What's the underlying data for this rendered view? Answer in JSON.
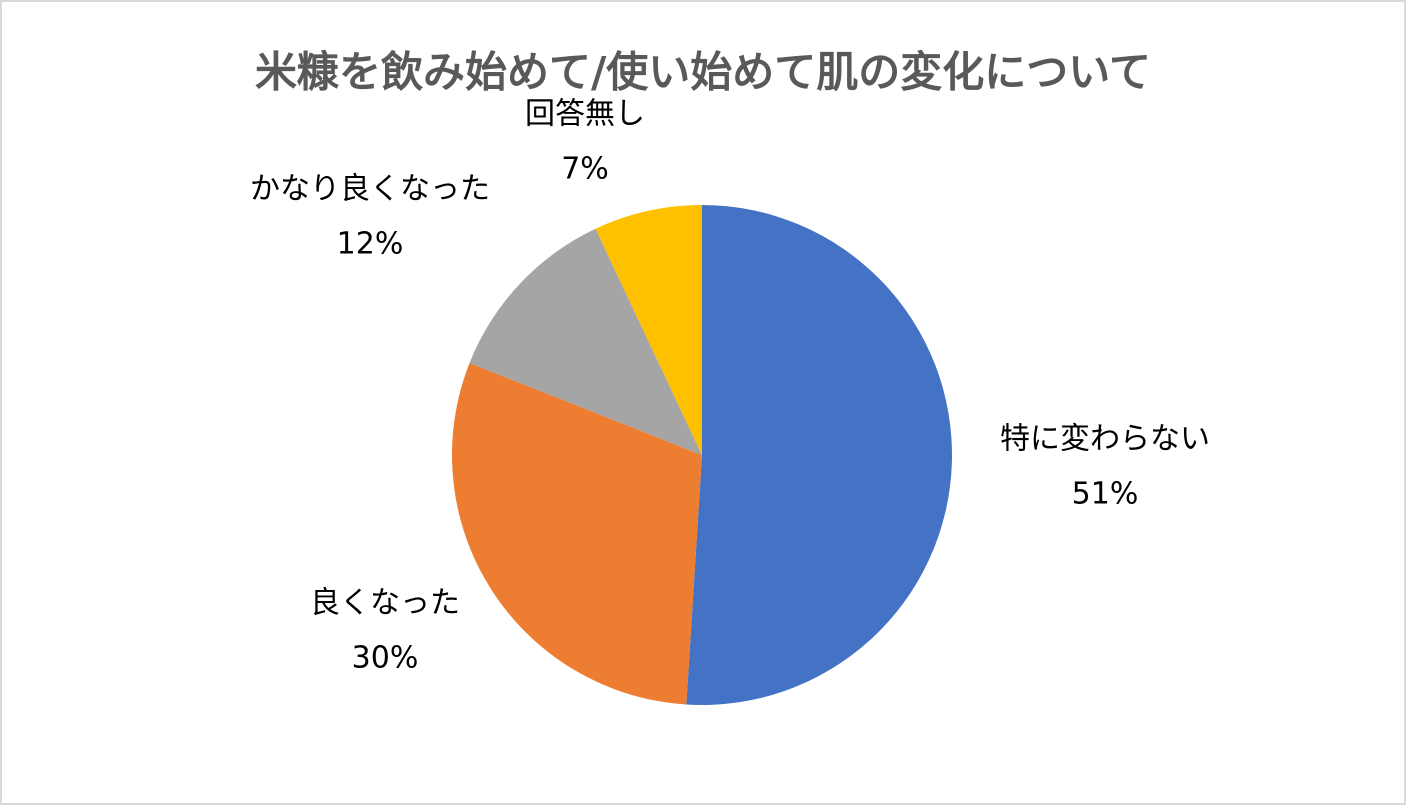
{
  "chart_data": {
    "type": "pie",
    "title": "米糠を飲み始めて/使い始めて肌の変化について",
    "categories": [
      "特に変わらない",
      "良くなった",
      "かなり良くなった",
      "回答無し"
    ],
    "values": [
      51,
      30,
      12,
      7
    ],
    "value_labels": [
      "51%",
      "30%",
      "12%",
      "7%"
    ],
    "colors": [
      "#4472c4",
      "#ed7d31",
      "#a5a5a5",
      "#ffc000"
    ]
  }
}
